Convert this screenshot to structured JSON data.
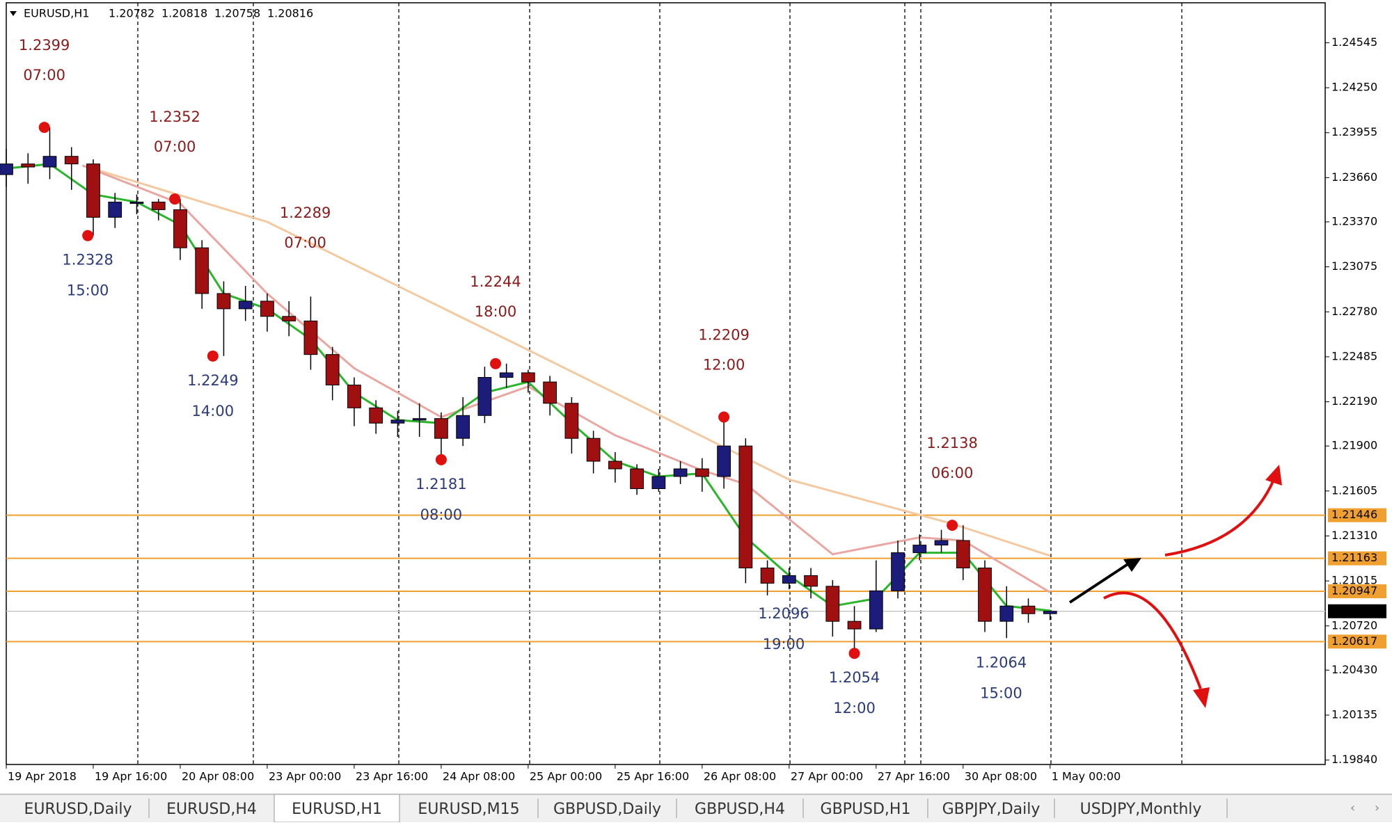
{
  "header": {
    "symbol": "EURUSD,H1",
    "open": 1.20782,
    "high": 1.20818,
    "low": 1.20758,
    "close": 1.20816
  },
  "chart_data": {
    "type": "candlestick",
    "x": [
      0,
      4,
      8,
      12,
      16,
      20,
      24,
      28,
      32,
      36,
      40,
      44,
      48,
      52,
      56,
      60,
      64,
      68,
      72,
      76,
      80,
      84,
      88,
      92,
      96,
      100,
      104,
      108,
      112,
      116,
      120,
      124,
      128,
      132,
      136,
      140,
      144,
      148,
      152,
      156,
      160,
      164,
      168,
      172,
      176,
      180,
      184,
      188,
      192
    ],
    "open": [
      1.2368,
      1.2375,
      1.2373,
      1.238,
      1.2375,
      1.234,
      1.235,
      1.235,
      1.2345,
      1.232,
      1.229,
      1.228,
      1.2285,
      1.2275,
      1.2272,
      1.225,
      1.223,
      1.2215,
      1.2205,
      1.2207,
      1.2208,
      1.2195,
      1.221,
      1.2235,
      1.2238,
      1.2232,
      1.2218,
      1.2195,
      1.218,
      1.2175,
      1.2162,
      1.217,
      1.2175,
      1.217,
      1.219,
      1.211,
      1.21,
      1.2105,
      1.2098,
      1.2075,
      1.207,
      1.2095,
      1.212,
      1.2125,
      1.2128,
      1.211,
      1.2075,
      1.2085,
      1.208
    ],
    "high": [
      1.2385,
      1.2382,
      1.2399,
      1.2386,
      1.2378,
      1.2356,
      1.2355,
      1.2352,
      1.2352,
      1.2325,
      1.2298,
      1.2295,
      1.229,
      1.2285,
      1.2288,
      1.2255,
      1.2235,
      1.222,
      1.2213,
      1.2218,
      1.2212,
      1.2222,
      1.2242,
      1.2244,
      1.224,
      1.2236,
      1.2222,
      1.22,
      1.2186,
      1.2178,
      1.2175,
      1.218,
      1.2182,
      1.2209,
      1.2195,
      1.2115,
      1.211,
      1.211,
      1.2102,
      1.2085,
      1.2115,
      1.2128,
      1.2132,
      1.2135,
      1.2138,
      1.2115,
      1.2098,
      1.209,
      1.20818
    ],
    "low": [
      1.236,
      1.2362,
      1.2365,
      1.2358,
      1.2328,
      1.2333,
      1.2342,
      1.2338,
      1.2312,
      1.228,
      1.2249,
      1.2272,
      1.2265,
      1.2262,
      1.224,
      1.222,
      1.2203,
      1.2198,
      1.2196,
      1.2196,
      1.2181,
      1.219,
      1.2205,
      1.2228,
      1.2225,
      1.221,
      1.2185,
      1.2172,
      1.2166,
      1.2158,
      1.216,
      1.2165,
      1.216,
      1.2162,
      1.21,
      1.2092,
      1.2096,
      1.209,
      1.2065,
      1.2054,
      1.2068,
      1.209,
      1.2115,
      1.212,
      1.2102,
      1.2068,
      1.2064,
      1.2074,
      1.20758
    ],
    "close": [
      1.2375,
      1.2373,
      1.238,
      1.2375,
      1.234,
      1.235,
      1.235,
      1.2345,
      1.232,
      1.229,
      1.228,
      1.2285,
      1.2275,
      1.2272,
      1.225,
      1.223,
      1.2215,
      1.2205,
      1.2207,
      1.2208,
      1.2195,
      1.221,
      1.2235,
      1.2238,
      1.2232,
      1.2218,
      1.2195,
      1.218,
      1.2175,
      1.2162,
      1.217,
      1.2175,
      1.217,
      1.219,
      1.211,
      1.21,
      1.2105,
      1.2098,
      1.2075,
      1.207,
      1.2095,
      1.212,
      1.2125,
      1.2128,
      1.211,
      1.2075,
      1.2085,
      1.208,
      1.20816
    ],
    "up_color": "#1c1c7a",
    "down_color": "#a01010",
    "lines": [
      {
        "color": "#f5c9a0",
        "x": [
          14,
          48,
          96,
          144,
          174,
          192
        ],
        "values": [
          1.2374,
          1.2337,
          1.2253,
          1.2168,
          1.2139,
          1.2118
        ]
      },
      {
        "color": "#eaa6a0",
        "x": [
          14,
          32,
          48,
          64,
          80,
          96,
          112,
          128,
          136,
          152,
          168,
          176,
          192
        ],
        "values": [
          1.2374,
          1.2349,
          1.229,
          1.2241,
          1.2209,
          1.2229,
          1.2197,
          1.2174,
          1.2165,
          1.2119,
          1.213,
          1.2128,
          1.2094
        ]
      },
      {
        "color": "#2bb52b",
        "x": [
          0,
          8,
          16,
          24,
          32,
          40,
          48,
          56,
          64,
          72,
          80,
          88,
          96,
          104,
          112,
          120,
          128,
          136,
          144,
          152,
          160,
          168,
          176,
          184,
          192
        ],
        "values": [
          1.2372,
          1.2375,
          1.2355,
          1.235,
          1.2335,
          1.229,
          1.228,
          1.226,
          1.2225,
          1.2207,
          1.2205,
          1.2225,
          1.2232,
          1.2205,
          1.218,
          1.217,
          1.2172,
          1.213,
          1.2105,
          1.2085,
          1.209,
          1.212,
          1.212,
          1.2085,
          1.2082
        ]
      }
    ],
    "xlim": [
      0,
      242.6
    ],
    "ylim": [
      1.19811,
      1.24807
    ],
    "yticks": [
      1.24545,
      {
        "value": 1.2425,
        "label": "1.24250"
      },
      1.23955,
      {
        "value": 1.2366,
        "label": "1.23660"
      },
      {
        "value": 1.2337,
        "label": "1.23370"
      },
      1.23075,
      {
        "value": 1.2278,
        "label": "1.22780"
      },
      1.22485,
      {
        "value": 1.2219,
        "label": "1.22190"
      },
      {
        "value": 1.219,
        "label": "1.21900"
      },
      1.21605,
      {
        "value": 1.2131,
        "label": "1.21310"
      },
      1.21015,
      {
        "value": 1.2072,
        "label": "1.20720"
      },
      {
        "value": 1.2043,
        "label": "1.20430"
      },
      1.20135,
      {
        "value": 1.1984,
        "label": "1.19840"
      }
    ],
    "xticks": [
      {
        "value": 0,
        "label": "19 Apr 2018"
      },
      {
        "value": 16,
        "label": "19 Apr 16:00"
      },
      {
        "value": 32,
        "label": "20 Apr 08:00"
      },
      {
        "value": 48,
        "label": "23 Apr 00:00"
      },
      {
        "value": 64,
        "label": "23 Apr 16:00"
      },
      {
        "value": 80,
        "label": "24 Apr 08:00"
      },
      {
        "value": 96,
        "label": "25 Apr 00:00"
      },
      {
        "value": 112,
        "label": "25 Apr 16:00"
      },
      {
        "value": 128,
        "label": "26 Apr 08:00"
      },
      {
        "value": 144,
        "label": "27 Apr 00:00"
      },
      {
        "value": 160,
        "label": "27 Apr 16:00"
      },
      {
        "value": 176,
        "label": "30 Apr 08:00"
      },
      {
        "value": 192,
        "label": "1 May 00:00"
      }
    ],
    "levels": [
      1.21446,
      1.21163,
      1.20947,
      1.20617
    ],
    "level_color": "#f0a030",
    "current_price": 1.20816,
    "annotations": [
      {
        "value": 1.2399,
        "time": "07:00",
        "x": 7,
        "kind": "high",
        "marker": true
      },
      {
        "value": 1.2328,
        "time": "15:00",
        "x": 15,
        "kind": "low",
        "marker": true
      },
      {
        "value": 1.2352,
        "time": "07:00",
        "x": 31,
        "kind": "high",
        "marker": true
      },
      {
        "value": 1.2289,
        "time": "07:00",
        "x": 55,
        "kind": "high",
        "marker": false
      },
      {
        "value": 1.2249,
        "time": "14:00",
        "x": 38,
        "kind": "low",
        "marker": true
      },
      {
        "value": 1.2244,
        "time": "18:00",
        "x": 90,
        "kind": "high",
        "marker": true
      },
      {
        "value": 1.2181,
        "time": "08:00",
        "x": 80,
        "kind": "low",
        "marker": true
      },
      {
        "value": 1.2209,
        "time": "12:00",
        "x": 132,
        "kind": "high",
        "marker": true
      },
      {
        "value": 1.2096,
        "time": "19:00",
        "x": 143,
        "kind": "low",
        "marker": false
      },
      {
        "value": 1.2054,
        "time": "12:00",
        "x": 156,
        "kind": "low",
        "marker": true
      },
      {
        "value": 1.2138,
        "time": "06:00",
        "x": 174,
        "kind": "high",
        "marker": true
      },
      {
        "value": 1.2064,
        "time": "15:00",
        "x": 183,
        "kind": "low",
        "marker": false
      }
    ]
  },
  "tabs": [
    "EURUSD,Daily",
    "EURUSD,H4",
    "EURUSD,H1",
    "EURUSD,M15",
    "GBPUSD,Daily",
    "GBPUSD,H4",
    "GBPUSD,H1",
    "GBPJPY,Daily",
    "USDJPY,Monthly"
  ],
  "active_tab": 2
}
